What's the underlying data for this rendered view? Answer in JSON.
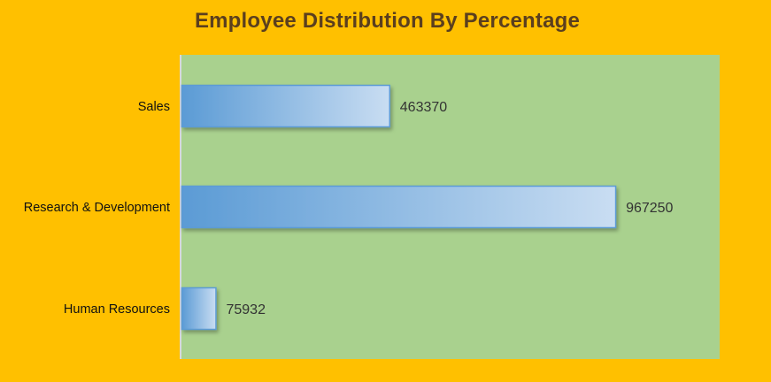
{
  "chart_data": {
    "type": "bar",
    "orientation": "horizontal",
    "title": "Employee Distribution By Percentage",
    "categories": [
      "Sales",
      "Research & Development",
      "Human Resources"
    ],
    "values": [
      463370,
      967250,
      75932
    ],
    "xlim": [
      0,
      1200000
    ],
    "grid": false,
    "colors": {
      "page_background": "#FFC000",
      "plot_background": "#A9D18E",
      "bar_gradient_start": "#5B9BD5",
      "bar_gradient_end": "#C9DDF2",
      "title": "#5B3F1E",
      "text": "#333333"
    }
  }
}
